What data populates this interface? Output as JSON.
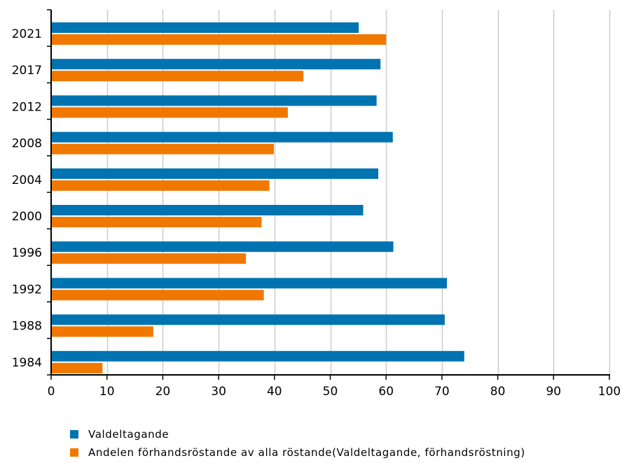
{
  "chart_data": {
    "type": "bar",
    "orientation": "horizontal",
    "categories": [
      "2021",
      "2017",
      "2012",
      "2008",
      "2004",
      "2000",
      "1996",
      "1992",
      "1988",
      "1984"
    ],
    "series": [
      {
        "name": "Valdeltagande",
        "color": "#0073b0",
        "values": [
          55.1,
          59.0,
          58.3,
          61.2,
          58.6,
          55.9,
          61.3,
          70.9,
          70.5,
          74.0
        ]
      },
      {
        "name": "Andelen förhandsröstande av alla röstande(Valdeltagande, förhandsröstning)",
        "color": "#f07800",
        "values": [
          60.0,
          45.2,
          42.4,
          39.9,
          39.1,
          37.7,
          34.9,
          38.1,
          18.3,
          9.2
        ]
      }
    ],
    "xlim": [
      0,
      100
    ],
    "xticks": [
      "0",
      "10",
      "20",
      "30",
      "40",
      "50",
      "60",
      "70",
      "80",
      "90",
      "100"
    ],
    "grid": "vertical",
    "legend_position": "bottom-left"
  }
}
